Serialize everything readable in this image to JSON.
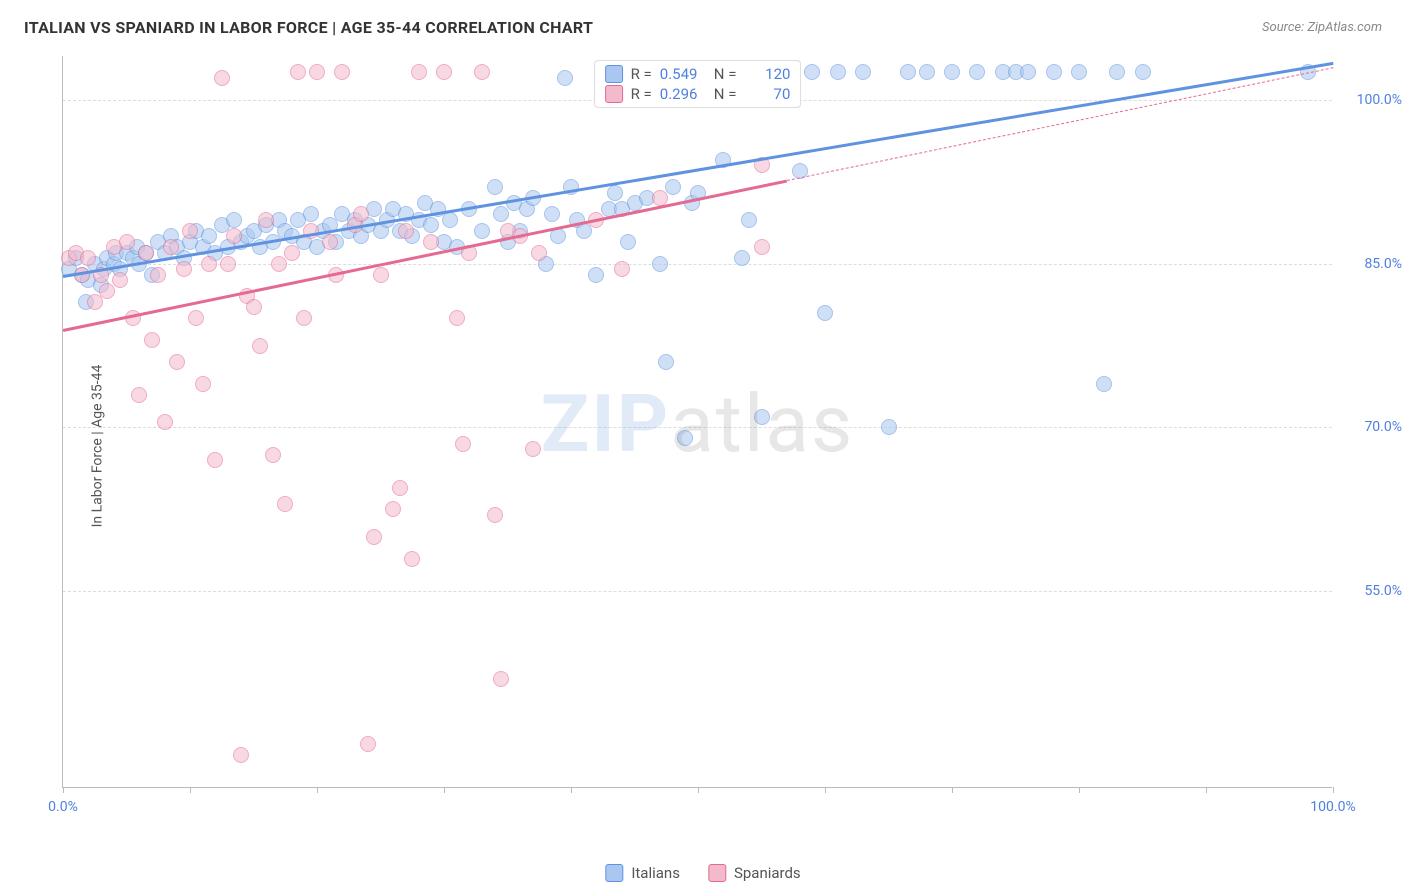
{
  "header": {
    "title": "ITALIAN VS SPANIARD IN LABOR FORCE | AGE 35-44 CORRELATION CHART",
    "source_prefix": "Source: ",
    "source_name": "ZipAtlas.com"
  },
  "chart": {
    "type": "scatter",
    "background_color": "#ffffff",
    "grid_color": "#dddddd",
    "axis_color": "#bbbbbb",
    "y_axis_label": "In Labor Force | Age 35-44",
    "y_ticks": [
      {
        "value": 55.0,
        "label": "55.0%"
      },
      {
        "value": 70.0,
        "label": "70.0%"
      },
      {
        "value": 85.0,
        "label": "85.0%"
      },
      {
        "value": 100.0,
        "label": "100.0%"
      }
    ],
    "x_ticks_minor": [
      0,
      10,
      20,
      30,
      40,
      50,
      60,
      70,
      80,
      90,
      100
    ],
    "x_tick_labels": [
      {
        "value": 0.0,
        "label": "0.0%"
      },
      {
        "value": 100.0,
        "label": "100.0%"
      }
    ],
    "x_domain": [
      0,
      100
    ],
    "y_domain": [
      37,
      104
    ],
    "watermark": {
      "bold": "ZIP",
      "light": "atlas"
    },
    "series": [
      {
        "name": "Italians",
        "legend_label": "Italians",
        "color_fill": "#a9c7f0",
        "color_stroke": "#5f93e0",
        "r_value": "0.549",
        "n_value": "120",
        "trend": {
          "x1": 0,
          "y1": 84.0,
          "x2": 100,
          "y2": 103.5,
          "solid_until_x": 100
        },
        "points": [
          [
            0.5,
            84.5
          ],
          [
            1,
            85.5
          ],
          [
            1.5,
            84
          ],
          [
            1.8,
            81.5
          ],
          [
            2,
            83.5
          ],
          [
            2.5,
            85
          ],
          [
            3,
            83
          ],
          [
            3.2,
            84.5
          ],
          [
            3.5,
            85.5
          ],
          [
            4,
            85
          ],
          [
            4.2,
            86
          ],
          [
            4.5,
            84.5
          ],
          [
            5,
            86
          ],
          [
            5.5,
            85.5
          ],
          [
            5.8,
            86.5
          ],
          [
            6,
            85
          ],
          [
            6.5,
            86
          ],
          [
            7,
            84
          ],
          [
            7.5,
            87
          ],
          [
            8,
            86
          ],
          [
            8.5,
            87.5
          ],
          [
            9,
            86.5
          ],
          [
            9.5,
            85.5
          ],
          [
            10,
            87
          ],
          [
            10.5,
            88
          ],
          [
            11,
            86.5
          ],
          [
            11.5,
            87.5
          ],
          [
            12,
            86
          ],
          [
            12.5,
            88.5
          ],
          [
            13,
            86.5
          ],
          [
            13.5,
            89
          ],
          [
            14,
            87
          ],
          [
            14.5,
            87.5
          ],
          [
            15,
            88
          ],
          [
            15.5,
            86.5
          ],
          [
            16,
            88.5
          ],
          [
            16.5,
            87
          ],
          [
            17,
            89
          ],
          [
            17.5,
            88
          ],
          [
            18,
            87.5
          ],
          [
            18.5,
            89
          ],
          [
            19,
            87
          ],
          [
            19.5,
            89.5
          ],
          [
            20,
            86.5
          ],
          [
            20.5,
            88
          ],
          [
            21,
            88.5
          ],
          [
            21.5,
            87
          ],
          [
            22,
            89.5
          ],
          [
            22.5,
            88
          ],
          [
            23,
            89
          ],
          [
            23.5,
            87.5
          ],
          [
            24,
            88.5
          ],
          [
            24.5,
            90
          ],
          [
            25,
            88
          ],
          [
            25.5,
            89
          ],
          [
            26,
            90
          ],
          [
            26.5,
            88
          ],
          [
            27,
            89.5
          ],
          [
            27.5,
            87.5
          ],
          [
            28,
            89
          ],
          [
            28.5,
            90.5
          ],
          [
            29,
            88.5
          ],
          [
            29.5,
            90
          ],
          [
            30,
            87
          ],
          [
            30.5,
            89
          ],
          [
            31,
            86.5
          ],
          [
            32,
            90
          ],
          [
            33,
            88
          ],
          [
            34,
            92
          ],
          [
            34.5,
            89.5
          ],
          [
            35,
            87
          ],
          [
            35.5,
            90.5
          ],
          [
            36,
            88
          ],
          [
            36.5,
            90
          ],
          [
            37,
            91
          ],
          [
            38,
            85
          ],
          [
            38.5,
            89.5
          ],
          [
            39,
            87.5
          ],
          [
            39.5,
            102
          ],
          [
            40,
            92
          ],
          [
            40.5,
            89
          ],
          [
            41,
            88
          ],
          [
            42,
            84
          ],
          [
            42.5,
            102.5
          ],
          [
            43,
            90
          ],
          [
            43.5,
            91.5
          ],
          [
            44,
            90
          ],
          [
            44.5,
            87
          ],
          [
            45,
            90.5
          ],
          [
            46,
            91
          ],
          [
            47,
            85
          ],
          [
            47.5,
            76
          ],
          [
            48,
            92
          ],
          [
            49,
            69
          ],
          [
            49.5,
            90.5
          ],
          [
            50,
            91.5
          ],
          [
            51,
            102.5
          ],
          [
            52,
            94.5
          ],
          [
            53,
            102.5
          ],
          [
            53.5,
            85.5
          ],
          [
            54,
            89
          ],
          [
            55,
            71
          ],
          [
            56,
            102.5
          ],
          [
            57,
            102.5
          ],
          [
            58,
            93.5
          ],
          [
            59,
            102.5
          ],
          [
            60,
            80.5
          ],
          [
            61,
            102.5
          ],
          [
            63,
            102.5
          ],
          [
            65,
            70
          ],
          [
            66.5,
            102.5
          ],
          [
            68,
            102.5
          ],
          [
            70,
            102.5
          ],
          [
            72,
            102.5
          ],
          [
            74,
            102.5
          ],
          [
            75,
            102.5
          ],
          [
            76,
            102.5
          ],
          [
            78,
            102.5
          ],
          [
            80,
            102.5
          ],
          [
            82,
            74
          ],
          [
            83,
            102.5
          ],
          [
            85,
            102.5
          ],
          [
            98,
            102.5
          ]
        ]
      },
      {
        "name": "Spaniards",
        "legend_label": "Spaniards",
        "color_fill": "#f3bacb",
        "color_stroke": "#e46a92",
        "r_value": "0.296",
        "n_value": "70",
        "trend": {
          "x1": 0,
          "y1": 79.0,
          "x2": 100,
          "y2": 103.0,
          "solid_until_x": 57
        },
        "points": [
          [
            0.5,
            85.5
          ],
          [
            1,
            86
          ],
          [
            1.5,
            84
          ],
          [
            2,
            85.5
          ],
          [
            2.5,
            81.5
          ],
          [
            3,
            84
          ],
          [
            3.5,
            82.5
          ],
          [
            4,
            86.5
          ],
          [
            4.5,
            83.5
          ],
          [
            5,
            87
          ],
          [
            5.5,
            80
          ],
          [
            6,
            73
          ],
          [
            6.5,
            86
          ],
          [
            7,
            78
          ],
          [
            7.5,
            84
          ],
          [
            8,
            70.5
          ],
          [
            8.5,
            86.5
          ],
          [
            9,
            76
          ],
          [
            9.5,
            84.5
          ],
          [
            10,
            88
          ],
          [
            10.5,
            80
          ],
          [
            11,
            74
          ],
          [
            11.5,
            85
          ],
          [
            12,
            67
          ],
          [
            12.5,
            102
          ],
          [
            13,
            85
          ],
          [
            13.5,
            87.5
          ],
          [
            14,
            40
          ],
          [
            14.5,
            82
          ],
          [
            15,
            81
          ],
          [
            15.5,
            77.5
          ],
          [
            16,
            89
          ],
          [
            16.5,
            67.5
          ],
          [
            17,
            85
          ],
          [
            17.5,
            63
          ],
          [
            18,
            86
          ],
          [
            18.5,
            102.5
          ],
          [
            19,
            80
          ],
          [
            19.5,
            88
          ],
          [
            20,
            102.5
          ],
          [
            21,
            87
          ],
          [
            21.5,
            84
          ],
          [
            22,
            102.5
          ],
          [
            23,
            88.5
          ],
          [
            23.5,
            89.5
          ],
          [
            24,
            41
          ],
          [
            24.5,
            60
          ],
          [
            25,
            84
          ],
          [
            26,
            62.5
          ],
          [
            26.5,
            64.5
          ],
          [
            27,
            88
          ],
          [
            27.5,
            58
          ],
          [
            28,
            102.5
          ],
          [
            29,
            87
          ],
          [
            30,
            102.5
          ],
          [
            31,
            80
          ],
          [
            31.5,
            68.5
          ],
          [
            32,
            86
          ],
          [
            33,
            102.5
          ],
          [
            34,
            62
          ],
          [
            34.5,
            47
          ],
          [
            35,
            88
          ],
          [
            36,
            87.5
          ],
          [
            37,
            68
          ],
          [
            37.5,
            86
          ],
          [
            42,
            89
          ],
          [
            44,
            84.5
          ],
          [
            47,
            91
          ],
          [
            47.5,
            102.5
          ],
          [
            55,
            86.5
          ],
          [
            55,
            94
          ],
          [
            57,
            102.5
          ]
        ]
      }
    ]
  },
  "legend_top": {
    "r_label": "R =",
    "n_label": "N ="
  }
}
